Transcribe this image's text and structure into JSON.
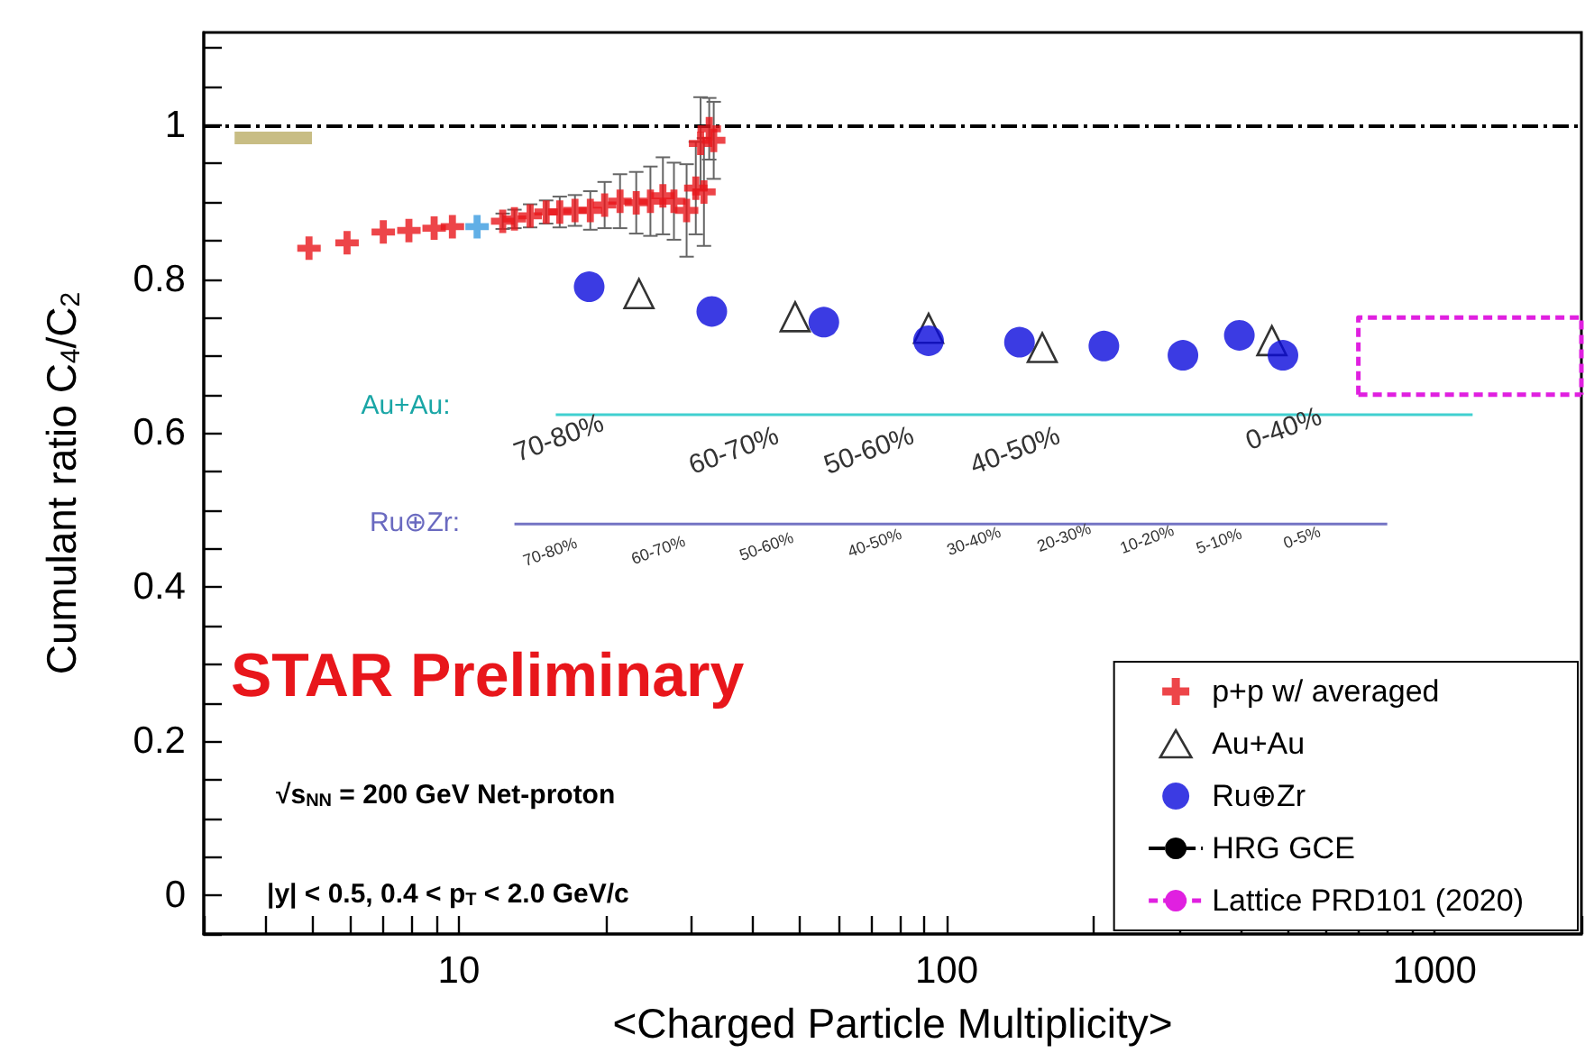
{
  "chart_data": {
    "type": "scatter",
    "xlabel": "<Charged Particle Multiplicity>",
    "ylabel": "Cumulant ratio C$_{4}$/C$_{2}$",
    "log": "x",
    "xlim": [
      3,
      2000
    ],
    "ylim": [
      -0.05,
      1.12
    ],
    "xticks": [
      {
        "value": 3,
        "label": null
      },
      {
        "value": 4,
        "label": null
      },
      {
        "value": 5,
        "label": null
      },
      {
        "value": 6,
        "label": null
      },
      {
        "value": 7,
        "label": null
      },
      {
        "value": 8,
        "label": null
      },
      {
        "value": 9,
        "label": null
      },
      10,
      {
        "value": 20,
        "label": null
      },
      {
        "value": 30,
        "label": null
      },
      {
        "value": 40,
        "label": null
      },
      {
        "value": 50,
        "label": null
      },
      {
        "value": 60,
        "label": null
      },
      {
        "value": 70,
        "label": null
      },
      {
        "value": 80,
        "label": null
      },
      {
        "value": 90,
        "label": null
      },
      100,
      {
        "value": 200,
        "label": null
      },
      {
        "value": 300,
        "label": null
      },
      {
        "value": 400,
        "label": null
      },
      {
        "value": 500,
        "label": null
      },
      {
        "value": 600,
        "label": null
      },
      {
        "value": 700,
        "label": null
      },
      {
        "value": 800,
        "label": null
      },
      {
        "value": 900,
        "label": null
      },
      1000,
      {
        "value": 2000,
        "label": null
      }
    ],
    "yticks": [
      {
        "value": -0.05,
        "label": null
      },
      0,
      {
        "value": 0.05,
        "label": null
      },
      {
        "value": 0.1,
        "label": null
      },
      {
        "value": 0.15,
        "label": null
      },
      0.2,
      {
        "value": 0.25,
        "label": null
      },
      {
        "value": 0.3,
        "label": null
      },
      {
        "value": 0.35,
        "label": null
      },
      0.4,
      {
        "value": 0.45,
        "label": null
      },
      {
        "value": 0.5,
        "label": null
      },
      {
        "value": 0.55,
        "label": null
      },
      0.6,
      {
        "value": 0.65,
        "label": null
      },
      {
        "value": 0.7,
        "label": null
      },
      {
        "value": 0.75,
        "label": null
      },
      0.8,
      {
        "value": 0.85,
        "label": null
      },
      {
        "value": 0.9,
        "label": null
      },
      {
        "value": 0.95,
        "label": null
      },
      1,
      {
        "value": 1.05,
        "label": null
      },
      {
        "value": 1.1,
        "label": null
      }
    ],
    "grid": false,
    "legend": "bottom right",
    "series": [
      {
        "name": "p+p w/ averaged",
        "marker": "cross",
        "color": "#e8161b",
        "x": [
          4.93,
          5.9,
          7.0,
          7.9,
          8.9,
          9.7,
          12.3,
          13.0,
          14.0,
          15.1,
          16.1,
          17.3,
          18.6,
          19.9,
          21.4,
          23.1,
          24.7,
          26.2,
          27.6,
          29.3,
          30.6,
          31.8,
          31.3,
          33.3,
          32.6
        ],
        "values": [
          0.84,
          0.847,
          0.861,
          0.863,
          0.866,
          0.868,
          0.875,
          0.878,
          0.882,
          0.887,
          0.887,
          0.889,
          0.889,
          0.896,
          0.901,
          0.899,
          0.901,
          0.908,
          0.901,
          0.889,
          0.918,
          0.913,
          0.976,
          0.98,
          0.995
        ],
        "errors": [
          null,
          null,
          null,
          null,
          null,
          null,
          0.01,
          0.012,
          0.015,
          0.015,
          0.02,
          0.02,
          0.025,
          0.03,
          0.035,
          0.04,
          0.045,
          0.05,
          0.05,
          0.06,
          0.06,
          0.07,
          0.06,
          0.05,
          0.04
        ]
      },
      {
        "marker": "cross",
        "color": "#3a9be0",
        "x": [
          10.9
        ],
        "values": [
          0.868
        ]
      },
      {
        "name": "Au+Au",
        "marker": "triangle",
        "color": "#000000",
        "x": [
          23.4,
          48.9,
          91.8,
          157,
          464
        ],
        "values": [
          0.781,
          0.751,
          0.736,
          0.711,
          0.72
        ]
      },
      {
        "name": "Ru⊕Zr",
        "marker": "circle",
        "color": "#0a0adc",
        "x": [
          18.5,
          33.0,
          56,
          91.8,
          141,
          210,
          305,
          398,
          489
        ],
        "values": [
          0.79,
          0.758,
          0.744,
          0.72,
          0.718,
          0.713,
          0.701,
          0.727,
          0.701
        ]
      },
      {
        "name": "Lattice PRD101 (2020)",
        "type": "line",
        "marker": "none",
        "line_style": "dashed",
        "color": "#e020e0",
        "x": [
          698,
          698,
          2000,
          2000
        ],
        "values": [
          0.65,
          0.75,
          0.75,
          0.65
        ]
      },
      {
        "type": "line",
        "marker": "none",
        "line_style": "dashed",
        "color": "#e020e0",
        "x": [
          698,
          2000
        ],
        "values": [
          0.65,
          0.65
        ]
      },
      {
        "type": "line",
        "marker": "none",
        "color": "#c8bd84",
        "x": [
          3.47,
          5.0
        ],
        "values": [
          0.983,
          0.983
        ]
      },
      {
        "type": "line",
        "marker": "none",
        "color": "#40d0d0",
        "x": [
          15.8,
          32.2,
          68.2,
          120,
          196,
          1197
        ],
        "values": [
          0.624,
          0.624,
          0.624,
          0.624,
          0.624,
          0.624
        ]
      },
      {
        "type": "line",
        "marker": "none",
        "color": "#7474c4",
        "x": [
          13.0,
          24.9,
          42.6,
          71.1,
          114,
          172,
          253,
          366,
          441,
          800
        ],
        "values": [
          0.482,
          0.482,
          0.482,
          0.482,
          0.482,
          0.482,
          0.482,
          0.482,
          0.482,
          0.482
        ]
      }
    ],
    "ref_lines": [
      {
        "axis": "y",
        "value": 1,
        "label": "HRG GCE",
        "color": "#000000",
        "line_style": "dashdot"
      }
    ],
    "annotations": [
      "STAR Preliminary",
      "√s$_{NN}$ = 200 GeV Net-proton",
      "|y| < 0.5, 0.4 < p$_{T}$ < 2.0 GeV/c",
      "Au+Au:",
      "70-80%",
      "60-70%",
      "50-60%",
      "40-50%",
      "0-40%",
      "Ru⊕Zr:",
      "70-80%",
      "60-70%",
      "50-60%",
      "40-50%",
      "30-40%",
      "20-30%",
      "10-20%",
      "5-10%",
      "0-5%"
    ]
  }
}
